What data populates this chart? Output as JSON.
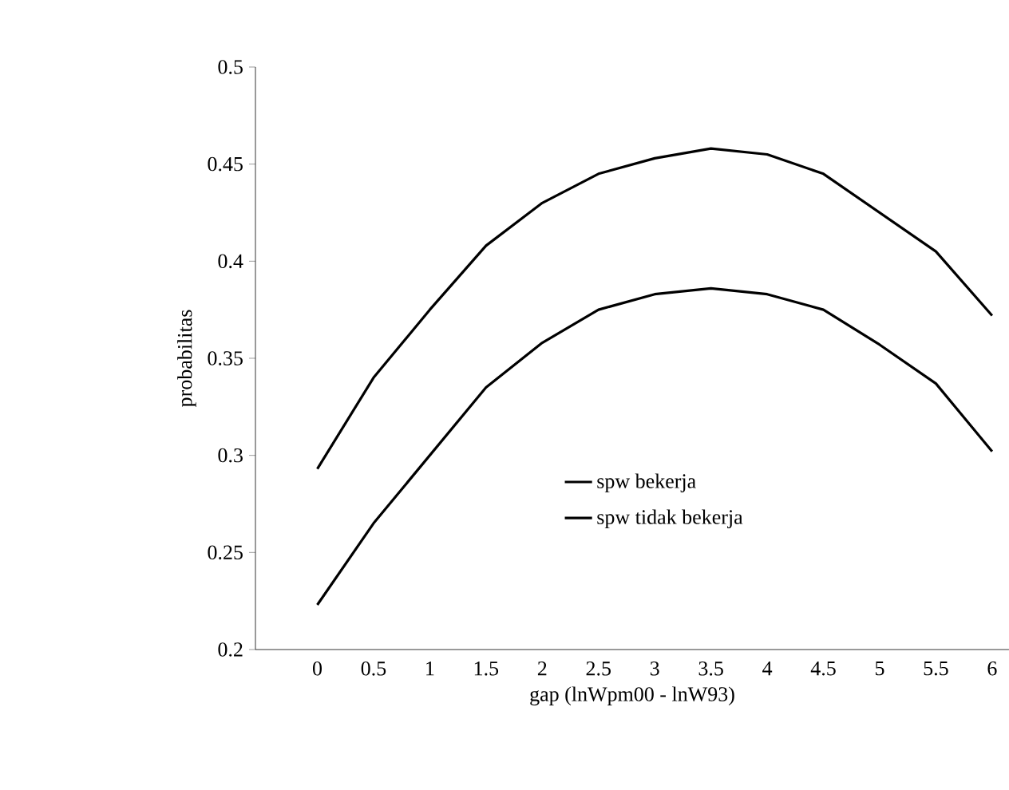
{
  "chart_data": {
    "type": "line",
    "xlabel": "gap (lnWpm00 - lnW93)",
    "ylabel": "probabilitas",
    "categories": [
      "0",
      "0.5",
      "1",
      "1.5",
      "2",
      "2.5",
      "3",
      "3.5",
      "4",
      "4.5",
      "5",
      "5.5",
      "6"
    ],
    "series": [
      {
        "name": "spw bekerja",
        "color": "#000000",
        "values": [
          0.293,
          0.34,
          0.375,
          0.408,
          0.43,
          0.445,
          0.453,
          0.458,
          0.455,
          0.445,
          0.425,
          0.405,
          0.372
        ]
      },
      {
        "name": "spw tidak bekerja",
        "color": "#000000",
        "values": [
          0.223,
          0.265,
          0.3,
          0.335,
          0.358,
          0.375,
          0.383,
          0.386,
          0.383,
          0.375,
          0.357,
          0.337,
          0.302
        ]
      }
    ],
    "ylim": [
      0.2,
      0.5
    ],
    "yticks": [
      0.2,
      0.25,
      0.3,
      0.35,
      0.4,
      0.45,
      0.5
    ],
    "legend": "bottom",
    "grid": false,
    "marker": "none",
    "line_style": "solid"
  }
}
